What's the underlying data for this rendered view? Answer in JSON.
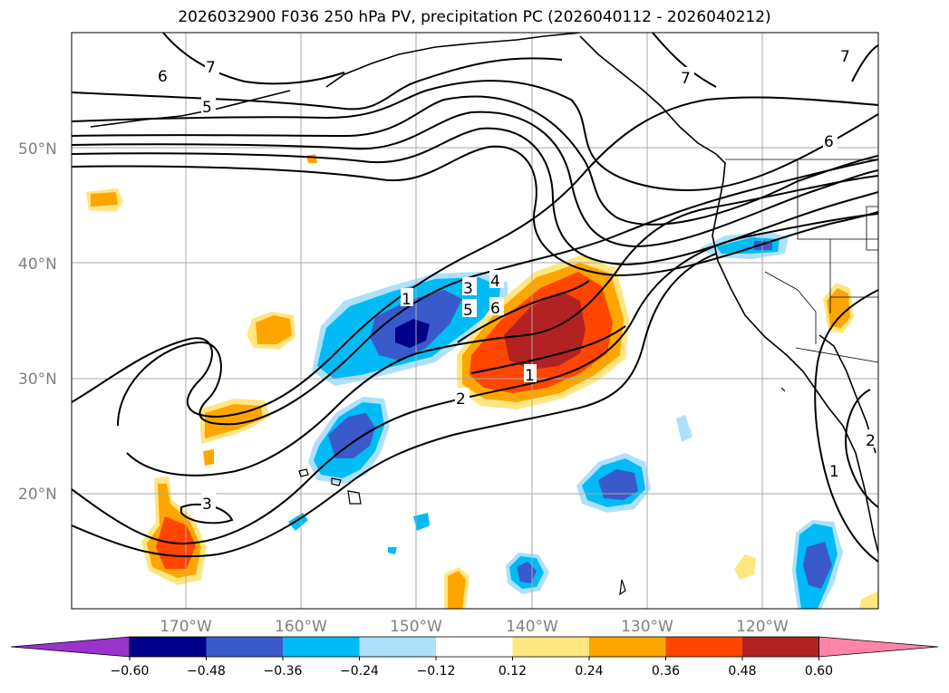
{
  "title": "2026032900 F036 250 hPa PV, precipitation PC (2026040112 - 2026040212)",
  "lon_labels": [
    "170°W",
    "160°W",
    "150°W",
    "140°W",
    "130°W",
    "120°W"
  ],
  "lat_labels": [
    "50°N",
    "40°N",
    "30°N",
    "20°N"
  ],
  "colorbar": {
    "ticks": [
      "−0.60",
      "−0.48",
      "−0.36",
      "−0.24",
      "−0.12",
      "0.12",
      "0.24",
      "0.36",
      "0.48",
      "0.60"
    ],
    "colors": [
      "#9933cc",
      "#00008b",
      "#3a5acb",
      "#00bbf5",
      "#ade1fb",
      "#ffffff",
      "#ffe681",
      "#ffa500",
      "#ff4500",
      "#b22222",
      "#ff85a8"
    ]
  },
  "contour_labels": [
    "6",
    "7",
    "5",
    "6",
    "7",
    "1",
    "3",
    "4",
    "5",
    "6",
    "1",
    "2",
    "3",
    "1",
    "2",
    "7"
  ]
}
